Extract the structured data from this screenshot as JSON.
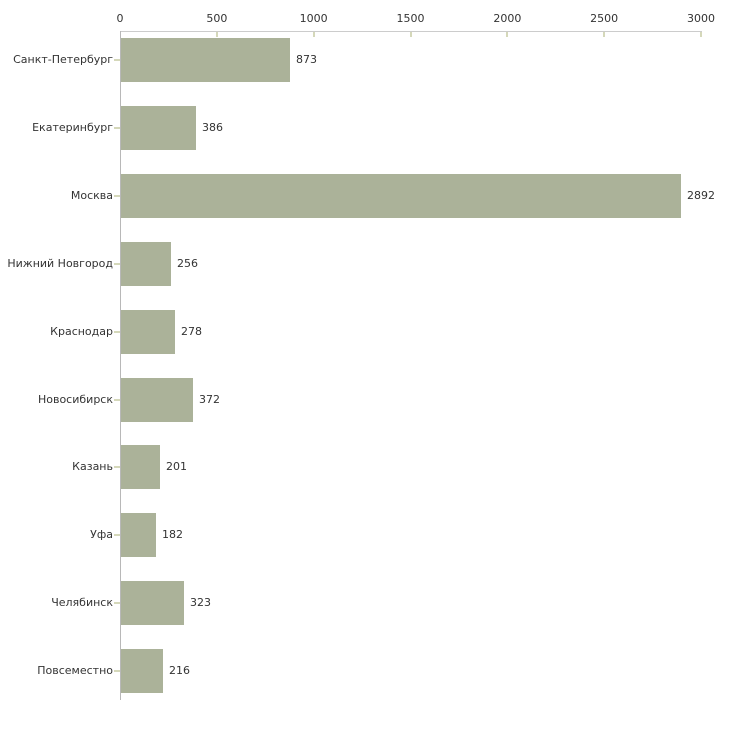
{
  "chart_data": {
    "type": "bar",
    "orientation": "horizontal",
    "title": "",
    "xlabel": "",
    "ylabel": "",
    "grid": false,
    "legend": null,
    "xlim": [
      0,
      3000
    ],
    "x_ticks": [
      "0",
      "500",
      "1000",
      "1500",
      "2000",
      "2500",
      "3000"
    ],
    "x_tick_values": [
      0,
      500,
      1000,
      1500,
      2000,
      2500,
      3000
    ],
    "categories": [
      "Санкт-Петербург",
      "Екатеринбург",
      "Москва",
      "Нижний Новгород",
      "Краснодар",
      "Новосибирск",
      "Казань",
      "Уфа",
      "Челябинск",
      "Повсеместно"
    ],
    "values": [
      873,
      386,
      2892,
      256,
      278,
      372,
      201,
      182,
      323,
      216
    ],
    "value_labels": [
      "873",
      "386",
      "2892",
      "256",
      "278",
      "372",
      "201",
      "182",
      "323",
      "216"
    ],
    "colors": {
      "bar": "#abb299",
      "axis_line_h": "#cccccc",
      "axis_line_v": "#b8b8b8",
      "tick_mark": "#d5d8ba",
      "text": "#333333",
      "background": "#ffffff"
    }
  }
}
